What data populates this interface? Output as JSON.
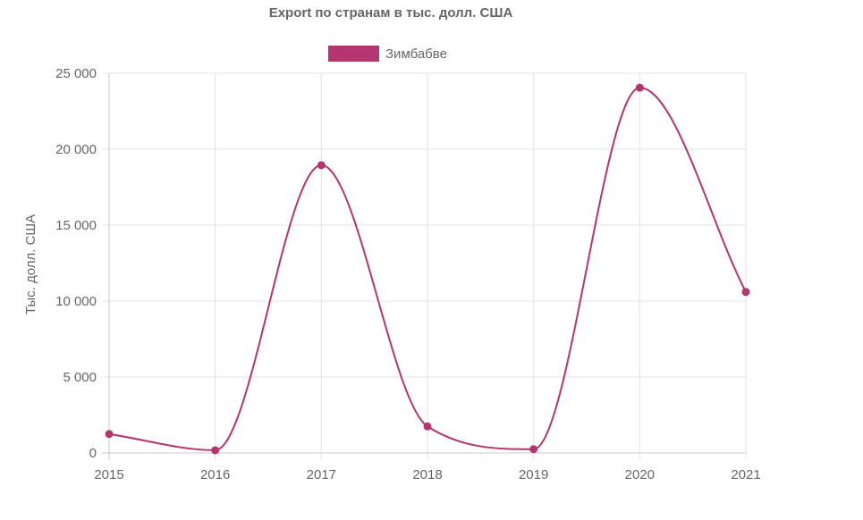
{
  "chart_data": {
    "type": "line",
    "title": "Export по странам в тыс. долл. США",
    "ylabel": "Тыс. долл. США",
    "xlabel": "",
    "x": [
      "2015",
      "2016",
      "2017",
      "2018",
      "2019",
      "2020",
      "2021"
    ],
    "series": [
      {
        "name": "Зимбабве",
        "color": "#b5356f",
        "values": [
          1250,
          180,
          18950,
          1750,
          250,
          24050,
          10600
        ]
      }
    ],
    "ylim": [
      0,
      25000
    ],
    "yticks": [
      0,
      5000,
      10000,
      15000,
      20000,
      25000
    ],
    "ytick_labels": [
      "0",
      "5 000",
      "10 000",
      "15 000",
      "20 000",
      "25 000"
    ],
    "grid": true,
    "legend_position": "top"
  }
}
